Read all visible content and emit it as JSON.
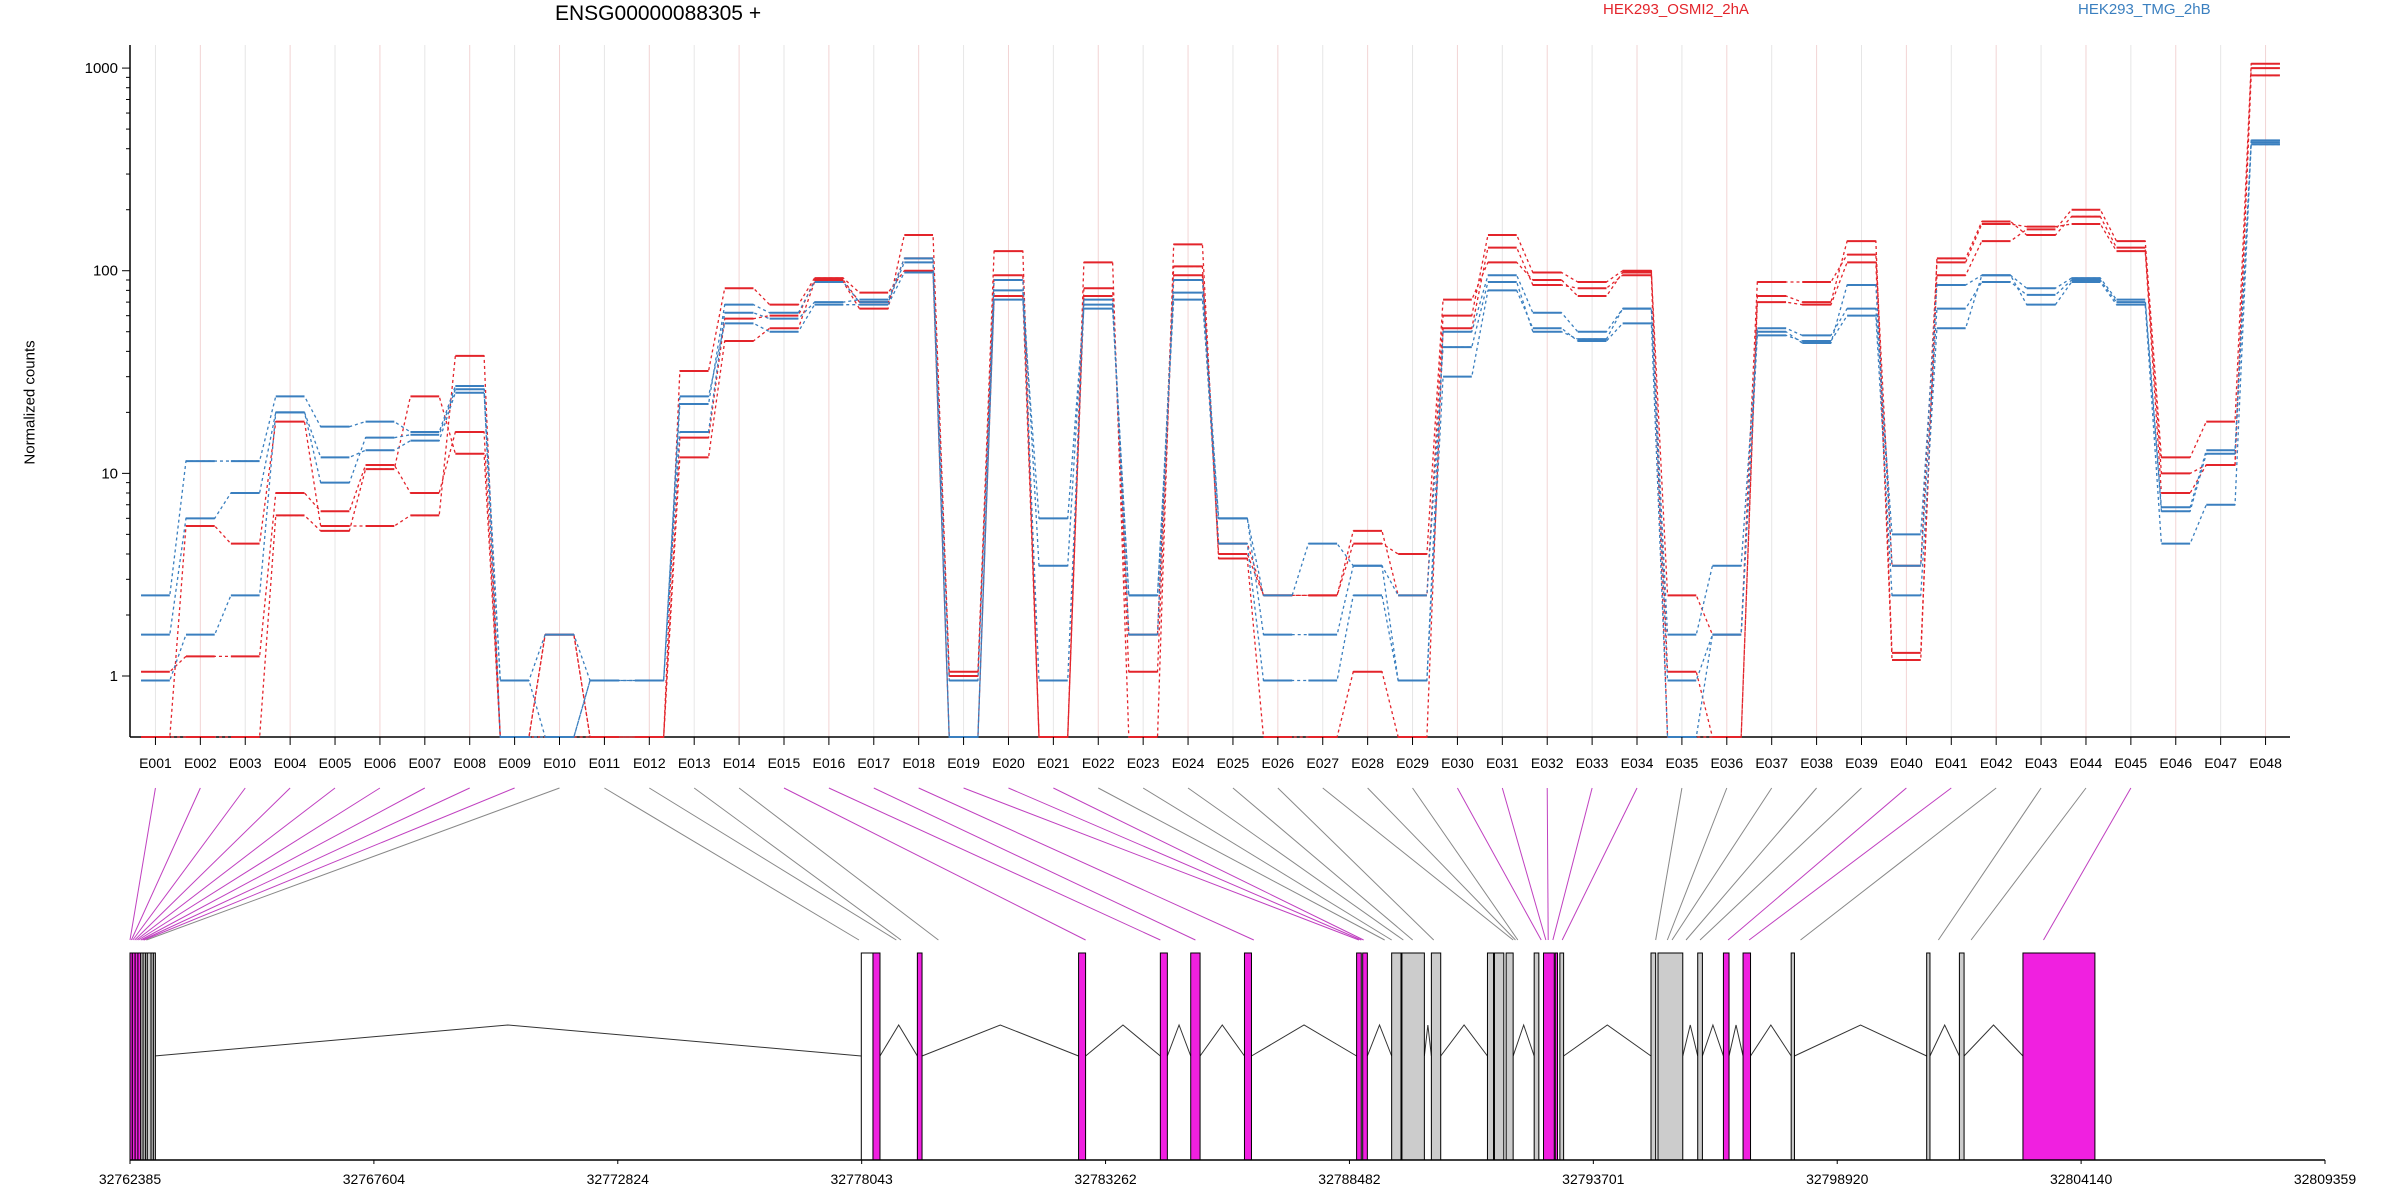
{
  "chart_data": {
    "type": "line",
    "title": "ENSG00000088305 +",
    "ylabel": "Normalized counts",
    "yscale": "log",
    "yticks": [
      {
        "label": "1",
        "value": 1
      },
      {
        "label": "10",
        "value": 10
      },
      {
        "label": "100",
        "value": 100
      },
      {
        "label": "1000",
        "value": 1000
      }
    ],
    "ylim": [
      0.5,
      1300
    ],
    "categories": [
      "E001",
      "E002",
      "E003",
      "E004",
      "E005",
      "E006",
      "E007",
      "E008",
      "E009",
      "E010",
      "E011",
      "E012",
      "E013",
      "E014",
      "E015",
      "E016",
      "E017",
      "E018",
      "E019",
      "E020",
      "E021",
      "E022",
      "E023",
      "E024",
      "E025",
      "E026",
      "E027",
      "E028",
      "E029",
      "E030",
      "E031",
      "E032",
      "E033",
      "E034",
      "E035",
      "E036",
      "E037",
      "E038",
      "E039",
      "E040",
      "E041",
      "E042",
      "E043",
      "E044",
      "E045",
      "E046",
      "E047",
      "E048"
    ],
    "legend": [
      {
        "label": "HEK293_OSMI2_2hA",
        "color": "#e3242b"
      },
      {
        "label": "HEK293_TMG_2hB",
        "color": "#3a7fbf"
      }
    ],
    "series": [
      {
        "group": 0,
        "values": [
          1.05,
          1.25,
          1.25,
          8,
          6.5,
          11,
          8,
          16,
          0.5,
          1.6,
          0.5,
          0.5,
          15,
          58,
          60,
          90,
          70,
          115,
          1,
          95,
          0.5,
          82,
          1.05,
          95,
          4.5,
          2.5,
          2.5,
          5.2,
          2.5,
          60,
          150,
          98,
          88,
          100,
          1.05,
          0.5,
          75,
          70,
          140,
          1.3,
          95,
          140,
          160,
          200,
          140,
          12,
          18,
          1050
        ]
      },
      {
        "group": 0,
        "values": [
          0.5,
          5.5,
          4.5,
          18,
          5.5,
          5.5,
          6.2,
          38,
          0.5,
          1.6,
          0.5,
          0.5,
          12,
          45,
          52,
          88,
          65,
          150,
          1.05,
          125,
          0.5,
          110,
          0.5,
          135,
          3.8,
          0.5,
          0.5,
          1.05,
          0.5,
          52,
          130,
          85,
          82,
          95,
          0.5,
          0.5,
          70,
          68,
          110,
          1.2,
          115,
          175,
          150,
          185,
          130,
          10,
          11,
          1000
        ]
      },
      {
        "group": 0,
        "values": [
          0.5,
          0.5,
          0.5,
          6.2,
          5.2,
          10.5,
          24,
          12.5,
          0.5,
          0.5,
          0.5,
          0.5,
          32,
          82,
          68,
          92,
          78,
          100,
          0.5,
          75,
          0.5,
          75,
          1.6,
          105,
          4,
          2.5,
          2.5,
          4.5,
          4,
          72,
          110,
          90,
          75,
          98,
          2.5,
          1.6,
          88,
          88,
          120,
          3.5,
          110,
          170,
          165,
          170,
          125,
          8,
          11,
          920
        ]
      },
      {
        "group": 1,
        "values": [
          0.95,
          1.6,
          2.5,
          20,
          12,
          13,
          14.5,
          25,
          0.95,
          1.6,
          0.95,
          0.95,
          22,
          68,
          62,
          88,
          70,
          110,
          0.95,
          90,
          3.5,
          72,
          1.6,
          90,
          6,
          1.6,
          1.6,
          3.5,
          0.95,
          50,
          95,
          62,
          50,
          65,
          0.95,
          1.6,
          52,
          48,
          65,
          5,
          85,
          95,
          82,
          92,
          72,
          6.8,
          13,
          440
        ]
      },
      {
        "group": 1,
        "values": [
          1.6,
          6,
          8,
          20,
          9,
          15,
          15.5,
          26,
          0.5,
          0.5,
          0.95,
          0.95,
          16,
          62,
          58,
          70,
          72,
          115,
          0.5,
          80,
          0.95,
          68,
          2.5,
          78,
          4.5,
          0.95,
          0.95,
          2.5,
          0.95,
          30,
          80,
          52,
          45,
          55,
          0.5,
          1.6,
          48,
          45,
          60,
          2.5,
          52,
          95,
          68,
          88,
          68,
          4.5,
          7,
          430
        ]
      },
      {
        "group": 1,
        "values": [
          2.5,
          11.5,
          11.5,
          24,
          17,
          18,
          16,
          27,
          0.95,
          0.5,
          0.95,
          0.95,
          24,
          55,
          50,
          68,
          68,
          98,
          0.5,
          72,
          6,
          65,
          2.5,
          72,
          6,
          2.5,
          4.5,
          3.5,
          2.5,
          42,
          88,
          50,
          46,
          65,
          1.6,
          3.5,
          50,
          44,
          85,
          3.5,
          65,
          88,
          76,
          90,
          70,
          6.5,
          12.5,
          420
        ]
      }
    ],
    "genome": {
      "start": 32762385,
      "end": 32809359,
      "ticks": [
        "32762385",
        "32767604",
        "32772824",
        "32778043",
        "32783262",
        "32788482",
        "32793701",
        "32798920",
        "32804140",
        "32809359"
      ]
    },
    "exon_map": [
      {
        "s": 0,
        "e": 50,
        "c": "magenta"
      },
      {
        "s": 50,
        "e": 110,
        "c": "magenta"
      },
      {
        "s": 110,
        "e": 170,
        "c": "magenta"
      },
      {
        "s": 170,
        "e": 230,
        "c": "magenta"
      },
      {
        "s": 230,
        "e": 280,
        "c": "grey"
      },
      {
        "s": 280,
        "e": 330,
        "c": "grey"
      },
      {
        "s": 330,
        "e": 370,
        "c": "grey"
      },
      {
        "s": 370,
        "e": 450,
        "c": "grey"
      },
      {
        "s": 450,
        "e": 500,
        "c": "grey"
      },
      {
        "s": 500,
        "e": 520,
        "c": "grey"
      },
      {
        "s": 15650,
        "e": 15900,
        "c": "white"
      },
      {
        "s": 15900,
        "e": 16050,
        "c": "magenta"
      },
      {
        "s": 16850,
        "e": 16950,
        "c": "magenta"
      },
      {
        "s": 20300,
        "e": 20450,
        "c": "magenta"
      },
      {
        "s": 22050,
        "e": 22200,
        "c": "magenta"
      },
      {
        "s": 22700,
        "e": 22900,
        "c": "magenta"
      },
      {
        "s": 23850,
        "e": 24000,
        "c": "magenta"
      },
      {
        "s": 26250,
        "e": 26350,
        "c": "magenta"
      },
      {
        "s": 26380,
        "e": 26480,
        "c": "magenta"
      },
      {
        "s": 27000,
        "e": 27200,
        "c": "grey"
      },
      {
        "s": 27220,
        "e": 27700,
        "c": "grey"
      },
      {
        "s": 27850,
        "e": 28050,
        "c": "grey"
      },
      {
        "s": 29050,
        "e": 29180,
        "c": "grey"
      },
      {
        "s": 29200,
        "e": 29400,
        "c": "grey"
      },
      {
        "s": 29450,
        "e": 29600,
        "c": "grey"
      },
      {
        "s": 30050,
        "e": 30150,
        "c": "grey"
      },
      {
        "s": 30250,
        "e": 30480,
        "c": "magenta"
      },
      {
        "s": 30500,
        "e": 30550,
        "c": "magenta"
      },
      {
        "s": 30600,
        "e": 30680,
        "c": "grey"
      },
      {
        "s": 32550,
        "e": 32650,
        "c": "grey"
      },
      {
        "s": 32700,
        "e": 33230,
        "c": "grey"
      },
      {
        "s": 33550,
        "e": 33650,
        "c": "grey"
      },
      {
        "s": 34100,
        "e": 34220,
        "c": "magenta"
      },
      {
        "s": 34520,
        "e": 34680,
        "c": "magenta"
      },
      {
        "s": 35550,
        "e": 35620,
        "c": "grey"
      },
      {
        "s": 38450,
        "e": 38520,
        "c": "grey"
      },
      {
        "s": 39150,
        "e": 39250,
        "c": "grey"
      },
      {
        "s": 40510,
        "e": 42050,
        "c": "magenta"
      }
    ],
    "exon_targets": [
      0,
      30,
      60,
      100,
      140,
      180,
      230,
      270,
      300,
      350,
      15600,
      16400,
      16500,
      17300,
      20450,
      22050,
      22800,
      24050,
      26300,
      26350,
      26400,
      26850,
      27000,
      27250,
      27450,
      27900,
      29600,
      29650,
      29700,
      30200,
      30300,
      30350,
      30450,
      30650,
      32650,
      32900,
      33000,
      33300,
      33600,
      34200,
      34650,
      35750,
      38700,
      39400,
      40950
    ]
  }
}
